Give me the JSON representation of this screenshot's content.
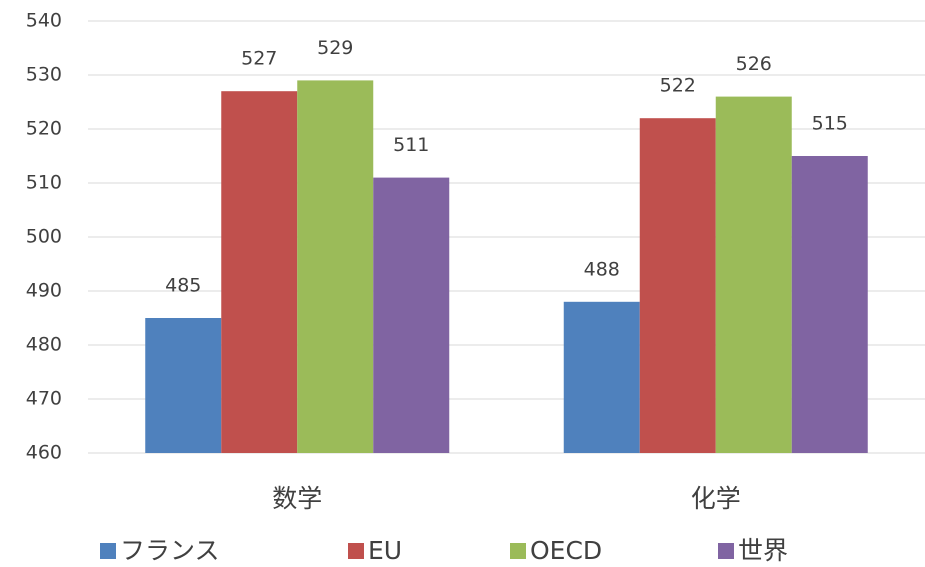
{
  "chart_data": {
    "type": "bar",
    "categories": [
      "数学",
      "化学"
    ],
    "series": [
      {
        "name": "フランス",
        "color": "#4f81bd",
        "values": [
          485,
          488
        ]
      },
      {
        "name": "EU",
        "color": "#c0504d",
        "values": [
          527,
          522
        ]
      },
      {
        "name": "OECD",
        "color": "#9bbb59",
        "values": [
          529,
          526
        ]
      },
      {
        "name": "世界",
        "color": "#8064a2",
        "values": [
          511,
          515
        ]
      }
    ],
    "ylim": [
      460,
      540
    ],
    "yticks": [
      460,
      470,
      480,
      490,
      500,
      510,
      520,
      530,
      540
    ],
    "grid": true,
    "legend": "bottom"
  }
}
